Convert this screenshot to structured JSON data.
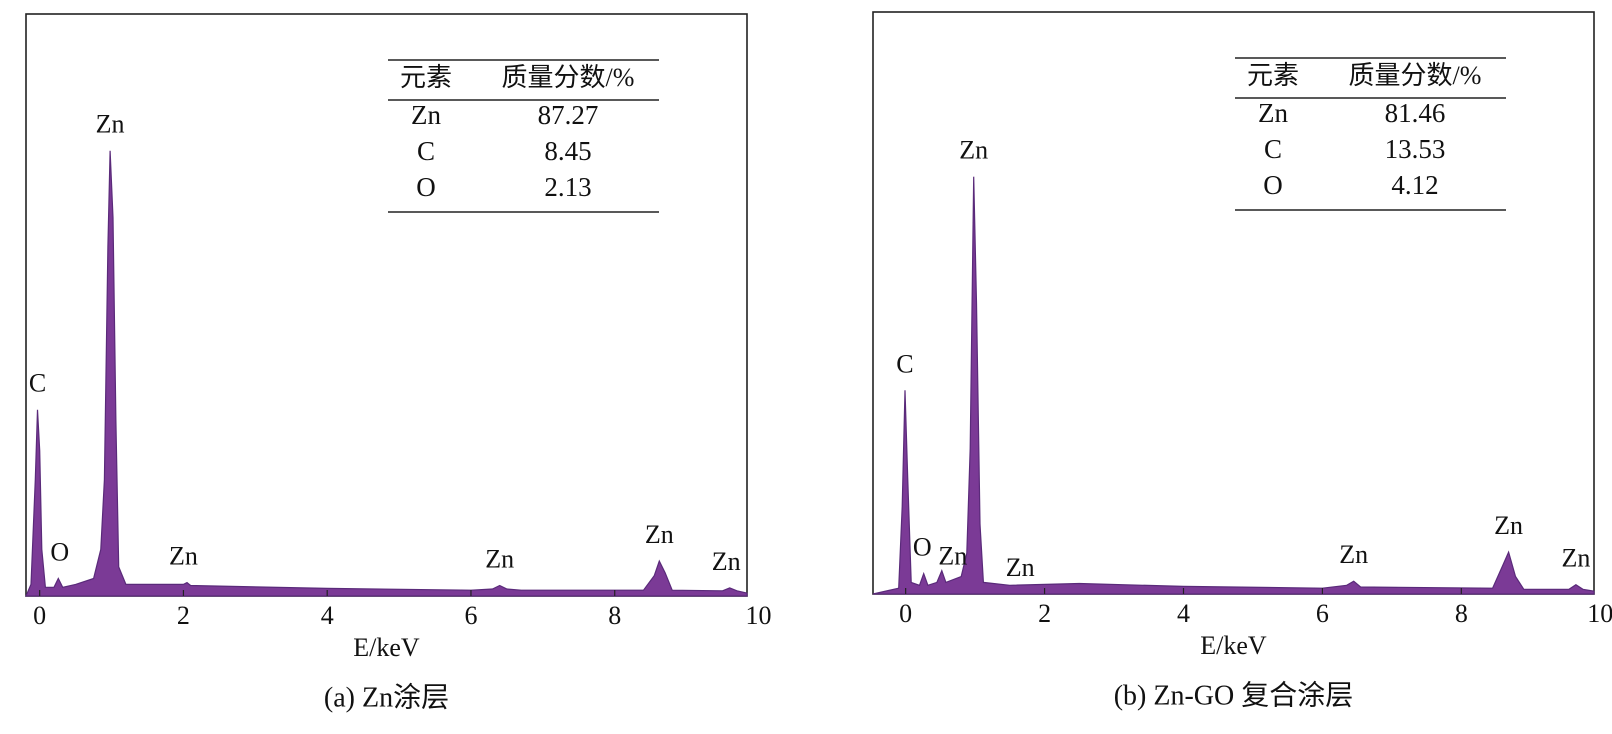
{
  "chart_data": [
    {
      "type": "area",
      "caption": "(a) Zn涂层",
      "xlabel": "E/keV",
      "xlim": [
        -0.19,
        9.84
      ],
      "xticks": [
        0,
        2,
        4,
        6,
        8,
        10
      ],
      "ylim": [
        0,
        100
      ],
      "color": "#7b3a96",
      "x": [
        -0.19,
        -0.12,
        -0.06,
        -0.03,
        0.0,
        0.03,
        0.08,
        0.2,
        0.26,
        0.32,
        0.5,
        0.75,
        0.85,
        0.9,
        0.95,
        0.98,
        1.02,
        1.06,
        1.1,
        1.2,
        2.0,
        2.05,
        2.1,
        4,
        6,
        6.3,
        6.4,
        6.5,
        6.7,
        8.4,
        8.55,
        8.62,
        8.7,
        8.8,
        9.5,
        9.6,
        9.7,
        9.84
      ],
      "values": [
        0,
        2,
        20,
        32,
        25,
        8,
        1.5,
        1.5,
        3,
        1.5,
        2,
        3,
        8,
        20,
        60,
        76.5,
        65,
        30,
        5,
        2,
        2,
        2.3,
        1.8,
        1.3,
        1,
        1.2,
        1.8,
        1.2,
        1,
        1,
        3.5,
        6,
        4,
        1,
        0.9,
        1.4,
        0.9,
        0.5
      ],
      "annotations": [
        {
          "text": "C",
          "x": -0.03
        },
        {
          "text": "O",
          "x": 0.28
        },
        {
          "text": "Zn",
          "x": 0.98
        },
        {
          "text": "Zn",
          "x": 2.0
        },
        {
          "text": "Zn",
          "x": 6.4
        },
        {
          "text": "Zn",
          "x": 8.62
        },
        {
          "text": "Zn",
          "x": 9.55
        }
      ],
      "table": {
        "header": [
          "元素",
          "质量分数/%"
        ],
        "rows": [
          [
            "Zn",
            87.27
          ],
          [
            "C",
            8.45
          ],
          [
            "O",
            2.13
          ]
        ]
      }
    },
    {
      "type": "area",
      "caption": "(b) Zn-GO 复合涂层",
      "xlabel": "E/keV",
      "xlim": [
        -0.47,
        9.91
      ],
      "xticks": [
        0,
        2,
        4,
        6,
        8,
        10
      ],
      "ylim": [
        0,
        100
      ],
      "color": "#7b3a96",
      "x": [
        -0.47,
        -0.1,
        -0.05,
        -0.01,
        0.03,
        0.08,
        0.2,
        0.26,
        0.32,
        0.45,
        0.52,
        0.58,
        0.8,
        0.88,
        0.93,
        0.98,
        1.02,
        1.07,
        1.12,
        1.5,
        2.5,
        4,
        6,
        6.35,
        6.45,
        6.55,
        8.45,
        8.6,
        8.68,
        8.78,
        8.9,
        9.55,
        9.65,
        9.75,
        9.91
      ],
      "values": [
        0,
        1,
        15,
        35,
        20,
        2,
        1.5,
        3.5,
        1.5,
        2,
        4,
        2,
        3,
        7,
        25,
        71.7,
        50,
        12,
        2,
        1.5,
        1.8,
        1.3,
        1,
        1.5,
        2.2,
        1.2,
        1,
        5,
        7.2,
        3,
        0.8,
        0.8,
        1.6,
        0.8,
        0.5
      ],
      "annotations": [
        {
          "text": "C",
          "x": -0.01
        },
        {
          "text": "O",
          "x": 0.24
        },
        {
          "text": "Zn",
          "x": 0.68
        },
        {
          "text": "Zn",
          "x": 0.98
        },
        {
          "text": "Zn",
          "x": 1.65
        },
        {
          "text": "Zn",
          "x": 6.45
        },
        {
          "text": "Zn",
          "x": 8.68
        },
        {
          "text": "Zn",
          "x": 9.65
        }
      ],
      "table": {
        "header": [
          "元素",
          "质量分数/%"
        ],
        "rows": [
          [
            "Zn",
            81.46
          ],
          [
            "C",
            13.53
          ],
          [
            "O",
            4.12
          ]
        ]
      }
    }
  ]
}
